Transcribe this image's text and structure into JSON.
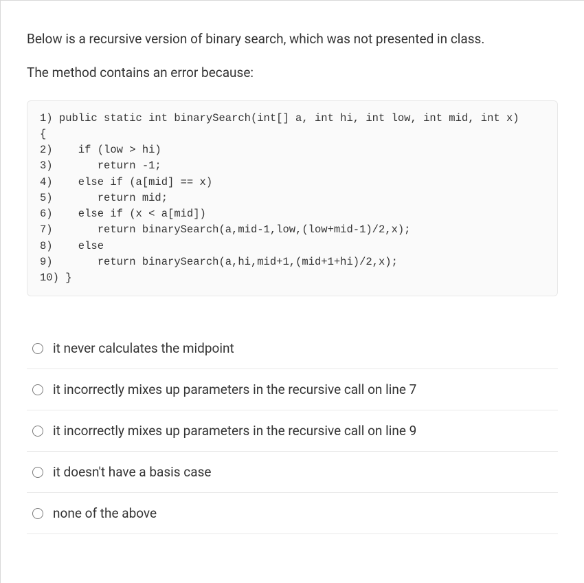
{
  "question": {
    "intro1": "Below is a recursive version of binary search, which was not presented in class.",
    "intro2": "The method contains an error because:"
  },
  "code": "1) public static int binarySearch(int[] a, int hi, int low, int mid, int x)\n{\n2)    if (low > hi)\n3)       return -1;\n4)    else if (a[mid] == x)\n5)       return mid;\n6)    else if (x < a[mid])\n7)       return binarySearch(a,mid-1,low,(low+mid-1)/2,x);\n8)    else\n9)       return binarySearch(a,hi,mid+1,(mid+1+hi)/2,x);\n10) }",
  "options": [
    {
      "label": "it never calculates the midpoint"
    },
    {
      "label": "it incorrectly mixes up parameters in the recursive call on line 7"
    },
    {
      "label": "it incorrectly mixes up parameters in the recursive call on line 9"
    },
    {
      "label": "it doesn't have a basis case"
    },
    {
      "label": "none of the above"
    }
  ],
  "style": {
    "text_color": "#333333",
    "border_color": "#e8e8e8",
    "code_bg": "#fafafa",
    "radio_border": "#7a7a7a",
    "body_font_size": 19,
    "code_font_size": 15.5
  }
}
